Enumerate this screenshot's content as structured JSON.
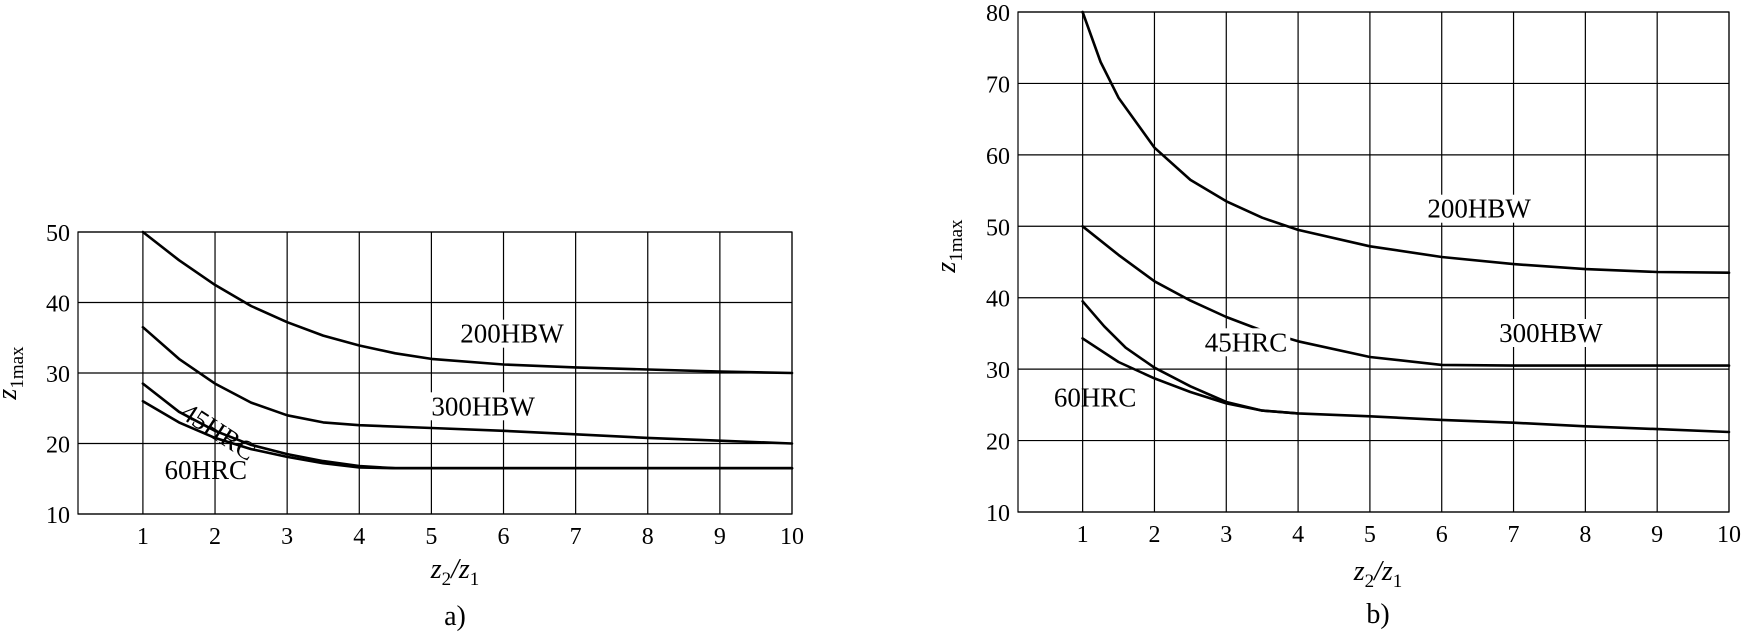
{
  "chart_data": [
    {
      "type": "line",
      "caption": "a)",
      "xlabel": {
        "base": "z",
        "sub1": "2",
        "sep": "/z",
        "sub2": "1"
      },
      "ylabel": {
        "base": "z",
        "sub": "1max"
      },
      "xlim": [
        0.1,
        10
      ],
      "ylim": [
        10,
        50
      ],
      "xticks": [
        1,
        2,
        3,
        4,
        5,
        6,
        7,
        8,
        9,
        10
      ],
      "yticks": [
        10,
        20,
        30,
        40,
        50
      ],
      "grid": true,
      "series": [
        {
          "name": "200HBW",
          "points": [
            [
              1,
              50
            ],
            [
              1.5,
              46
            ],
            [
              2,
              42.5
            ],
            [
              2.5,
              39.5
            ],
            [
              3,
              37.2
            ],
            [
              3.5,
              35.3
            ],
            [
              4,
              33.9
            ],
            [
              4.5,
              32.8
            ],
            [
              5,
              32
            ],
            [
              6,
              31.2
            ],
            [
              7,
              30.8
            ],
            [
              8,
              30.5
            ],
            [
              9,
              30.2
            ],
            [
              10,
              30
            ]
          ]
        },
        {
          "name": "300HBW",
          "points": [
            [
              1,
              36.5
            ],
            [
              1.5,
              32
            ],
            [
              2,
              28.5
            ],
            [
              2.5,
              25.8
            ],
            [
              3,
              24
            ],
            [
              3.5,
              23
            ],
            [
              4,
              22.6
            ],
            [
              5,
              22.2
            ],
            [
              6,
              21.8
            ],
            [
              7,
              21.3
            ],
            [
              8,
              20.8
            ],
            [
              9,
              20.4
            ],
            [
              10,
              20
            ]
          ]
        },
        {
          "name": "45HRC",
          "points": [
            [
              1,
              28.5
            ],
            [
              1.5,
              24.5
            ],
            [
              2,
              21.8
            ],
            [
              2.5,
              19.8
            ],
            [
              3,
              18.5
            ],
            [
              3.5,
              17.5
            ],
            [
              4,
              16.8
            ],
            [
              4.5,
              16.5
            ],
            [
              5,
              16.5
            ],
            [
              6,
              16.5
            ],
            [
              7,
              16.5
            ],
            [
              8,
              16.5
            ],
            [
              9,
              16.5
            ],
            [
              10,
              16.5
            ]
          ]
        },
        {
          "name": "60HRC",
          "points": [
            [
              1,
              26
            ],
            [
              1.5,
              23
            ],
            [
              2,
              20.8
            ],
            [
              2.5,
              19.2
            ],
            [
              3,
              18.1
            ],
            [
              3.5,
              17.2
            ],
            [
              4,
              16.6
            ],
            [
              4.5,
              16.5
            ],
            [
              5,
              16.5
            ],
            [
              6,
              16.5
            ],
            [
              7,
              16.5
            ],
            [
              8,
              16.5
            ],
            [
              9,
              16.5
            ],
            [
              10,
              16.5
            ]
          ]
        }
      ],
      "annotations": [
        {
          "text": "200HBW",
          "x": 5.4,
          "y": 34.3,
          "rotate": 0,
          "bg": true
        },
        {
          "text": "300HBW",
          "x": 5.0,
          "y": 24.0,
          "rotate": 0,
          "bg": true
        },
        {
          "text": "45HRC",
          "x": 1.5,
          "y": 23.8,
          "rotate": 33,
          "bg": false
        },
        {
          "text": "60HRC",
          "x": 1.3,
          "y": 15.0,
          "rotate": 0,
          "bg": false
        }
      ]
    },
    {
      "type": "line",
      "caption": "b)",
      "xlabel": {
        "base": "z",
        "sub1": "2",
        "sep": "/z",
        "sub2": "1"
      },
      "ylabel": {
        "base": "z",
        "sub": "1max"
      },
      "xlim": [
        0.1,
        10
      ],
      "ylim": [
        10,
        80
      ],
      "xticks": [
        1,
        2,
        3,
        4,
        5,
        6,
        7,
        8,
        9,
        10
      ],
      "yticks": [
        10,
        20,
        30,
        40,
        50,
        60,
        70,
        80
      ],
      "grid": true,
      "series": [
        {
          "name": "200HBW",
          "points": [
            [
              1,
              80
            ],
            [
              1.25,
              73
            ],
            [
              1.5,
              68
            ],
            [
              2,
              61
            ],
            [
              2.5,
              56.5
            ],
            [
              3,
              53.5
            ],
            [
              3.5,
              51.2
            ],
            [
              4,
              49.5
            ],
            [
              5,
              47.2
            ],
            [
              6,
              45.7
            ],
            [
              7,
              44.7
            ],
            [
              8,
              44
            ],
            [
              9,
              43.6
            ],
            [
              10,
              43.5
            ]
          ]
        },
        {
          "name": "300HBW",
          "points": [
            [
              1,
              50
            ],
            [
              1.5,
              46
            ],
            [
              2,
              42.3
            ],
            [
              2.5,
              39.6
            ],
            [
              3,
              37.3
            ],
            [
              3.5,
              35.4
            ],
            [
              4,
              33.9
            ],
            [
              5,
              31.7
            ],
            [
              6,
              30.6
            ],
            [
              7,
              30.5
            ],
            [
              8,
              30.5
            ],
            [
              9,
              30.5
            ],
            [
              10,
              30.5
            ]
          ]
        },
        {
          "name": "45HRC",
          "points": [
            [
              1,
              39.5
            ],
            [
              1.3,
              36
            ],
            [
              1.6,
              33
            ],
            [
              2,
              30.2
            ],
            [
              2.5,
              27.6
            ],
            [
              3,
              25.4
            ],
            [
              3.5,
              24.2
            ],
            [
              4,
              23.8
            ]
          ]
        },
        {
          "name": "60HRC",
          "points": [
            [
              1,
              34.3
            ],
            [
              1.5,
              31
            ],
            [
              2,
              28.7
            ],
            [
              2.5,
              26.8
            ],
            [
              3,
              25.2
            ],
            [
              3.5,
              24.2
            ],
            [
              4,
              23.8
            ],
            [
              5,
              23.4
            ],
            [
              6,
              22.9
            ],
            [
              7,
              22.5
            ],
            [
              8,
              22
            ],
            [
              9,
              21.6
            ],
            [
              10,
              21.2
            ]
          ]
        }
      ],
      "annotations": [
        {
          "text": "200HBW",
          "x": 5.8,
          "y": 51.2,
          "rotate": 0,
          "bg": true
        },
        {
          "text": "300HBW",
          "x": 6.8,
          "y": 33.8,
          "rotate": 0,
          "bg": true
        },
        {
          "text": "45HRC",
          "x": 2.7,
          "y": 32.5,
          "rotate": 0,
          "bg": true
        },
        {
          "text": "60HRC",
          "x": 0.6,
          "y": 24.8,
          "rotate": 0,
          "bg": false
        }
      ]
    }
  ]
}
